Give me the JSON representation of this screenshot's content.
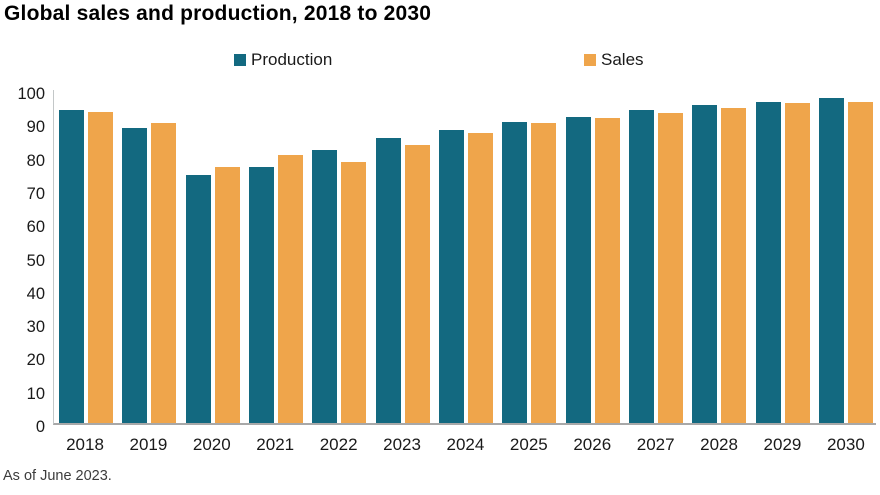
{
  "title": "Global sales and production, 2018 to 2030",
  "footer": "As of June 2023.",
  "colors": {
    "production": "#136980",
    "sales": "#efa54b",
    "axis_line": "#c3c7c8",
    "baseline": "#a8a8a8",
    "text": "#1a1a1a"
  },
  "chart_data": {
    "type": "bar",
    "title": "Global sales and production, 2018 to 2030",
    "categories": [
      "2018",
      "2019",
      "2020",
      "2021",
      "2022",
      "2023",
      "2024",
      "2025",
      "2026",
      "2027",
      "2028",
      "2029",
      "2030"
    ],
    "series": [
      {
        "name": "Production",
        "color": "#136980",
        "values": [
          94,
          88.5,
          74.5,
          77,
          82,
          85.5,
          88,
          90.5,
          92,
          94,
          95.5,
          96.5,
          97.5
        ]
      },
      {
        "name": "Sales",
        "color": "#efa54b",
        "values": [
          93.5,
          90,
          77,
          80.5,
          78.5,
          83.5,
          87,
          90,
          91.5,
          93,
          94.5,
          96,
          96.5
        ]
      }
    ],
    "xlabel": "",
    "ylabel": "",
    "ylim": [
      0,
      100
    ],
    "yticks": [
      0,
      10,
      20,
      30,
      40,
      50,
      60,
      70,
      80,
      90,
      100
    ],
    "grid": false,
    "legend_position": "top",
    "annotation": "As of June 2023."
  }
}
